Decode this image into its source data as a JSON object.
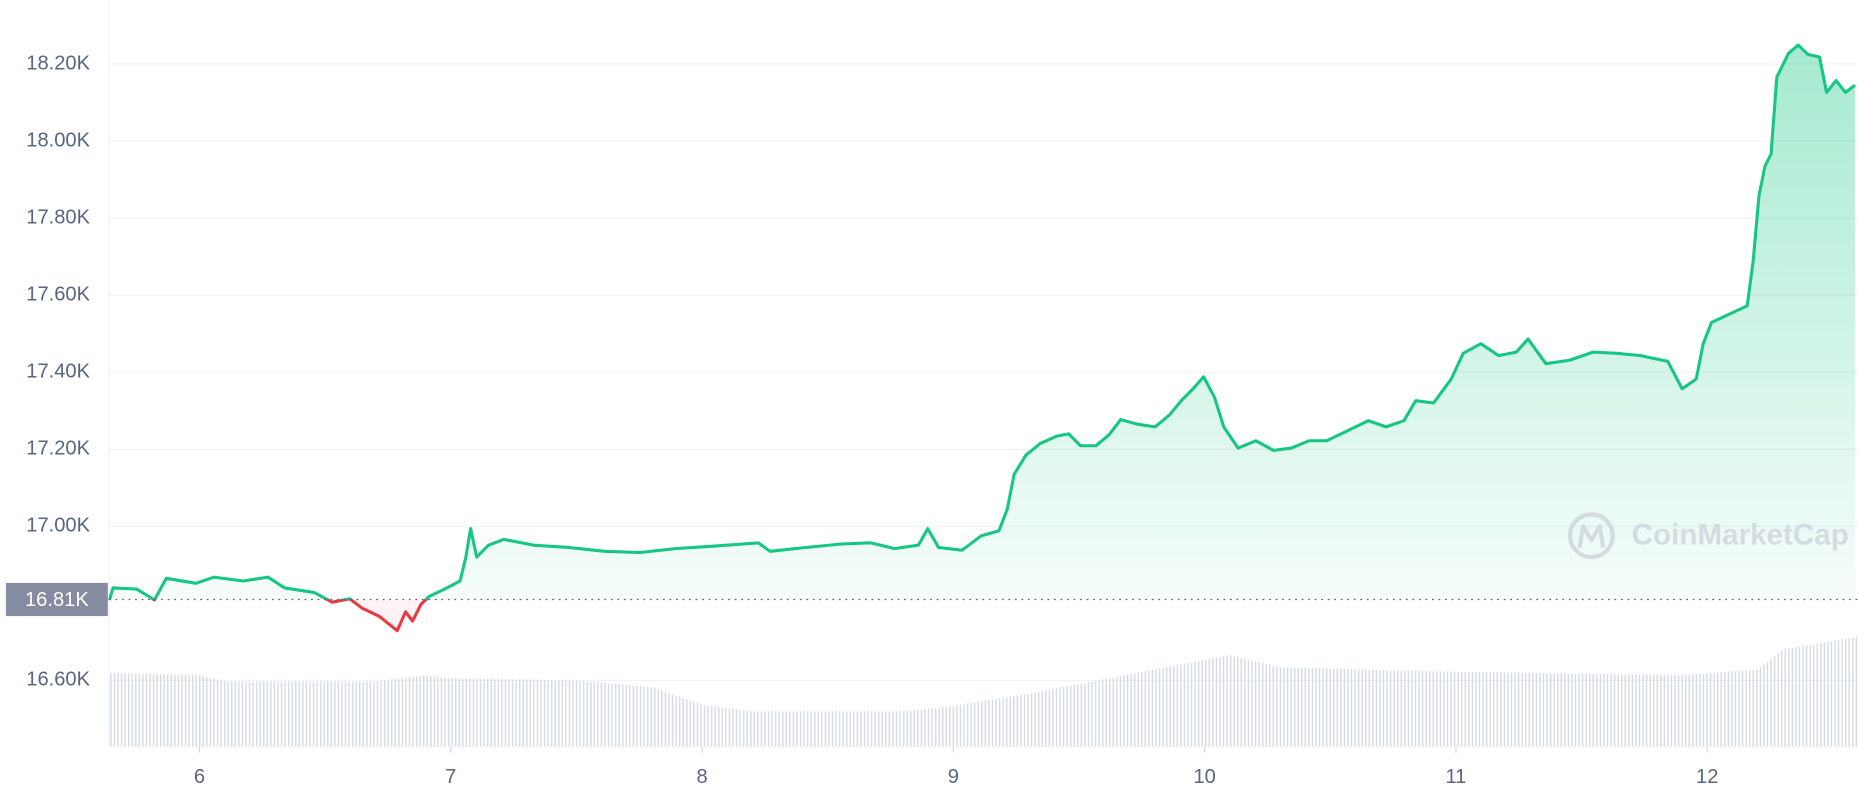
{
  "chart_data": {
    "type": "line",
    "color": "#16c784",
    "color_below": "#ea3943",
    "baseline": {
      "value": 16810,
      "label": "16.81K"
    },
    "watermark": "CoinMarketCap",
    "xlim": [
      5.64,
      12.6
    ],
    "xticks": [
      6,
      7,
      8,
      9,
      10,
      11,
      12
    ],
    "ylim": [
      16428,
      18366
    ],
    "yticks": [
      {
        "value": 16600,
        "label": "16.60K"
      },
      {
        "value": 17000,
        "label": "17.00K"
      },
      {
        "value": 17200,
        "label": "17.20K"
      },
      {
        "value": 17400,
        "label": "17.40K"
      },
      {
        "value": 17600,
        "label": "17.60K"
      },
      {
        "value": 17800,
        "label": "17.80K"
      },
      {
        "value": 18000,
        "label": "18.00K"
      },
      {
        "value": 18200,
        "label": "18.20K"
      }
    ],
    "grid": true,
    "x": [
      5.642,
      5.656,
      5.75,
      5.821,
      5.868,
      5.986,
      6.057,
      6.174,
      6.273,
      6.339,
      6.457,
      6.528,
      6.598,
      6.646,
      6.716,
      6.787,
      6.82,
      6.848,
      6.881,
      6.914,
      6.975,
      7.037,
      7.06,
      7.079,
      7.103,
      7.15,
      7.211,
      7.329,
      7.47,
      7.612,
      7.753,
      7.894,
      8.036,
      8.224,
      8.271,
      8.413,
      8.554,
      8.672,
      8.766,
      8.861,
      8.898,
      8.941,
      9.035,
      9.11,
      9.181,
      9.214,
      9.242,
      9.289,
      9.346,
      9.412,
      9.459,
      9.506,
      9.567,
      9.619,
      9.666,
      9.732,
      9.803,
      9.86,
      9.907,
      9.954,
      9.996,
      10.039,
      10.076,
      10.133,
      10.204,
      10.274,
      10.345,
      10.416,
      10.486,
      10.581,
      10.651,
      10.722,
      10.793,
      10.84,
      10.911,
      10.981,
      11.029,
      11.099,
      11.17,
      11.24,
      11.287,
      11.358,
      11.452,
      11.546,
      11.64,
      11.735,
      11.843,
      11.9,
      11.956,
      11.984,
      12.017,
      12.089,
      12.159,
      12.183,
      12.206,
      12.23,
      12.254,
      12.277,
      12.324,
      12.362,
      12.4,
      12.447,
      12.475,
      12.513,
      12.55,
      12.588
    ],
    "values": [
      16809,
      16840,
      16837,
      16809,
      16865,
      16852,
      16868,
      16858,
      16868,
      16840,
      16828,
      16803,
      16812,
      16788,
      16766,
      16729,
      16778,
      16754,
      16797,
      16818,
      16837,
      16858,
      16920,
      16994,
      16920,
      16951,
      16966,
      16951,
      16945,
      16935,
      16932,
      16942,
      16948,
      16957,
      16935,
      16945,
      16954,
      16957,
      16942,
      16951,
      16994,
      16945,
      16938,
      16975,
      16988,
      17043,
      17135,
      17185,
      17215,
      17234,
      17240,
      17209,
      17209,
      17237,
      17277,
      17265,
      17258,
      17289,
      17326,
      17357,
      17388,
      17335,
      17258,
      17203,
      17222,
      17197,
      17203,
      17222,
      17222,
      17252,
      17274,
      17258,
      17274,
      17326,
      17320,
      17382,
      17449,
      17474,
      17443,
      17452,
      17486,
      17422,
      17431,
      17452,
      17449,
      17443,
      17428,
      17357,
      17382,
      17474,
      17529,
      17551,
      17572,
      17689,
      17858,
      17935,
      17966,
      18166,
      18228,
      18249,
      18225,
      18218,
      18126,
      18157,
      18126,
      18145
    ],
    "volume": {
      "color": "#cfd6e4",
      "x": [
        5.64,
        6.0,
        6.1,
        6.7,
        6.9,
        7.0,
        7.5,
        7.8,
        8.0,
        8.2,
        8.8,
        9.0,
        9.3,
        9.8,
        10.1,
        10.3,
        11.0,
        11.9,
        12.2,
        12.3,
        12.6
      ],
      "values": [
        67,
        65,
        59,
        59,
        65,
        62,
        60,
        54,
        38,
        32,
        32,
        37,
        48,
        70,
        83,
        72,
        68,
        65,
        70,
        88,
        100
      ]
    }
  }
}
